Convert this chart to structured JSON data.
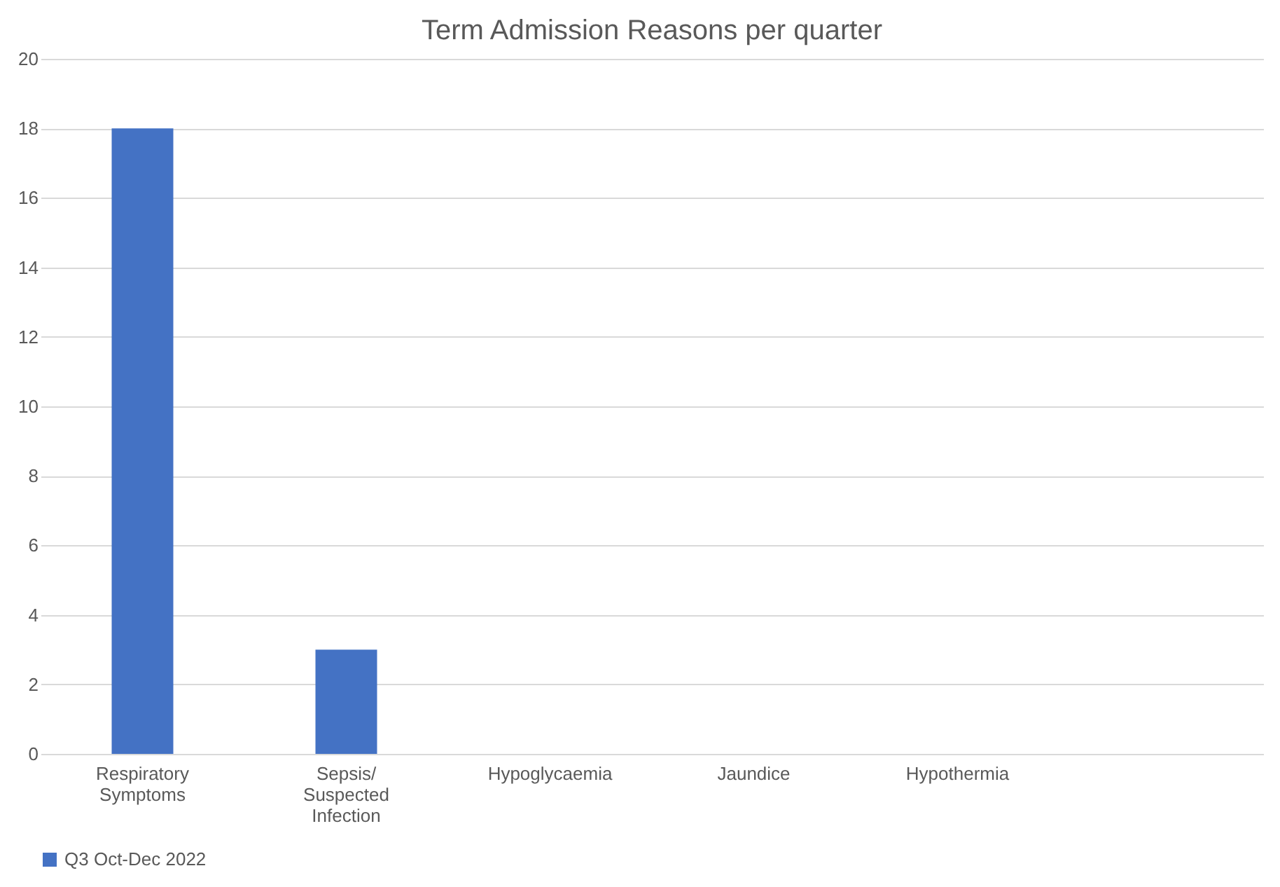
{
  "chart_data": {
    "type": "bar",
    "title": "Term Admission Reasons per quarter",
    "categories": [
      "Respiratory Symptoms",
      "Sepsis/ Suspected Infection",
      "Hypoglycaemia",
      "Jaundice",
      "Hypothermia",
      null
    ],
    "series": [
      {
        "name": "Q3 Oct-Dec 2022",
        "color": "#4472c4",
        "values": [
          18,
          3,
          0,
          0,
          0,
          null
        ]
      }
    ],
    "ylim": [
      0,
      20
    ],
    "yticks": [
      0,
      2,
      4,
      6,
      8,
      10,
      12,
      14,
      16,
      18,
      20
    ],
    "grid": "y",
    "legend": "bottom"
  }
}
